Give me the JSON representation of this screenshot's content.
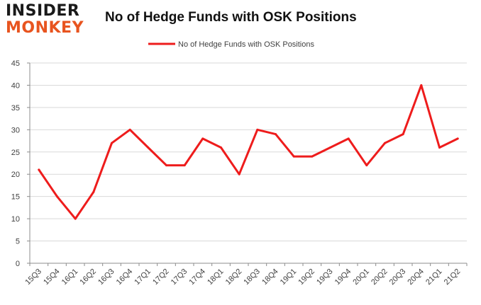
{
  "logo": {
    "line1": "INSIDER",
    "line2": "MONKEY"
  },
  "chart_data": {
    "type": "line",
    "title": "No of Hedge Funds with OSK Positions",
    "xlabel": "",
    "ylabel": "",
    "categories": [
      "15Q3",
      "15Q4",
      "16Q1",
      "16Q2",
      "16Q3",
      "16Q4",
      "17Q1",
      "17Q2",
      "17Q3",
      "17Q4",
      "18Q1",
      "18Q2",
      "18Q3",
      "18Q4",
      "19Q1",
      "19Q2",
      "19Q3",
      "19Q4",
      "20Q1",
      "20Q2",
      "20Q3",
      "20Q4",
      "21Q1",
      "21Q2"
    ],
    "series": [
      {
        "name": "No of Hedge Funds with OSK Positions",
        "values": [
          21,
          15,
          10,
          16,
          27,
          30,
          26,
          22,
          22,
          28,
          26,
          20,
          30,
          29,
          24,
          24,
          26,
          28,
          22,
          27,
          29,
          40,
          26,
          28
        ]
      }
    ],
    "ylim": [
      0,
      45
    ],
    "yticks": [
      0,
      5,
      10,
      15,
      20,
      25,
      30,
      35,
      40,
      45
    ],
    "grid": true,
    "legend": "top-center",
    "colors": {
      "line": "#ee1c1c",
      "grid": "#d9d9d9",
      "axis": "#8c8c8c",
      "text": "#404040"
    }
  }
}
